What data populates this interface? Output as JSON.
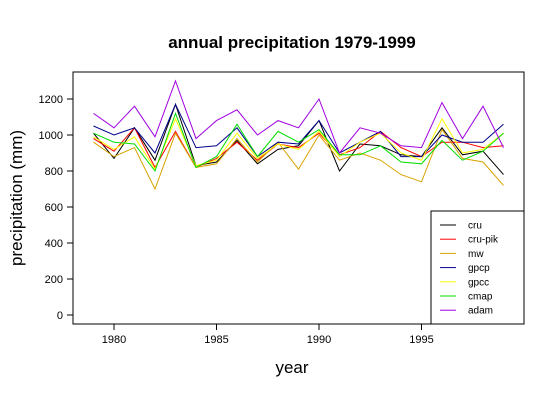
{
  "chart_data": {
    "type": "line",
    "title": "annual precipitation 1979-1999",
    "xlabel": "year",
    "ylabel": "precipitation (mm)",
    "xlim": [
      1978,
      2000
    ],
    "ylim": [
      -50,
      1350
    ],
    "x_ticks": [
      1980,
      1985,
      1990,
      1995
    ],
    "y_ticks": [
      0,
      200,
      400,
      600,
      800,
      1000,
      1200
    ],
    "legend_position": "bottom-right",
    "x": [
      1979,
      1980,
      1981,
      1982,
      1983,
      1984,
      1985,
      1986,
      1987,
      1988,
      1989,
      1990,
      1991,
      1992,
      1993,
      1994,
      1995,
      1996,
      1997,
      1998,
      1999
    ],
    "series": [
      {
        "name": "cru",
        "color": "#000000",
        "values": [
          1010,
          870,
          1040,
          860,
          1170,
          830,
          850,
          970,
          840,
          920,
          940,
          1080,
          800,
          950,
          940,
          890,
          880,
          1040,
          890,
          910,
          780
        ]
      },
      {
        "name": "cru-pik",
        "color": "#ff0000",
        "values": [
          980,
          910,
          1040,
          820,
          1020,
          820,
          870,
          960,
          860,
          950,
          930,
          1010,
          890,
          930,
          1020,
          930,
          880,
          960,
          960,
          930,
          940
        ]
      },
      {
        "name": "mw",
        "color": "#d9a300",
        "values": [
          960,
          880,
          930,
          700,
          1010,
          820,
          840,
          980,
          850,
          960,
          810,
          1000,
          860,
          900,
          860,
          780,
          740,
          1030,
          870,
          850,
          720
        ]
      },
      {
        "name": "gpcp",
        "color": "#00008b",
        "values": [
          1050,
          1000,
          1040,
          900,
          1170,
          930,
          940,
          1040,
          880,
          960,
          950,
          1080,
          900,
          960,
          1020,
          880,
          880,
          1000,
          960,
          960,
          1060
        ]
      },
      {
        "name": "gpcc",
        "color": "#ffff00",
        "values": [
          990,
          920,
          990,
          810,
          1090,
          830,
          860,
          1010,
          870,
          950,
          920,
          1020,
          880,
          960,
          1010,
          900,
          860,
          1090,
          900,
          920,
          1010
        ]
      },
      {
        "name": "cmap",
        "color": "#00dd00",
        "values": [
          1010,
          960,
          950,
          800,
          1120,
          820,
          880,
          1060,
          880,
          1020,
          960,
          1030,
          890,
          890,
          940,
          850,
          840,
          970,
          860,
          910,
          1010
        ]
      },
      {
        "name": "adam",
        "color": "#a000e0",
        "values": [
          1120,
          1040,
          1160,
          990,
          1300,
          980,
          1080,
          1140,
          1000,
          1080,
          1040,
          1200,
          900,
          1040,
          1010,
          940,
          930,
          1180,
          980,
          1160,
          930
        ]
      }
    ]
  }
}
